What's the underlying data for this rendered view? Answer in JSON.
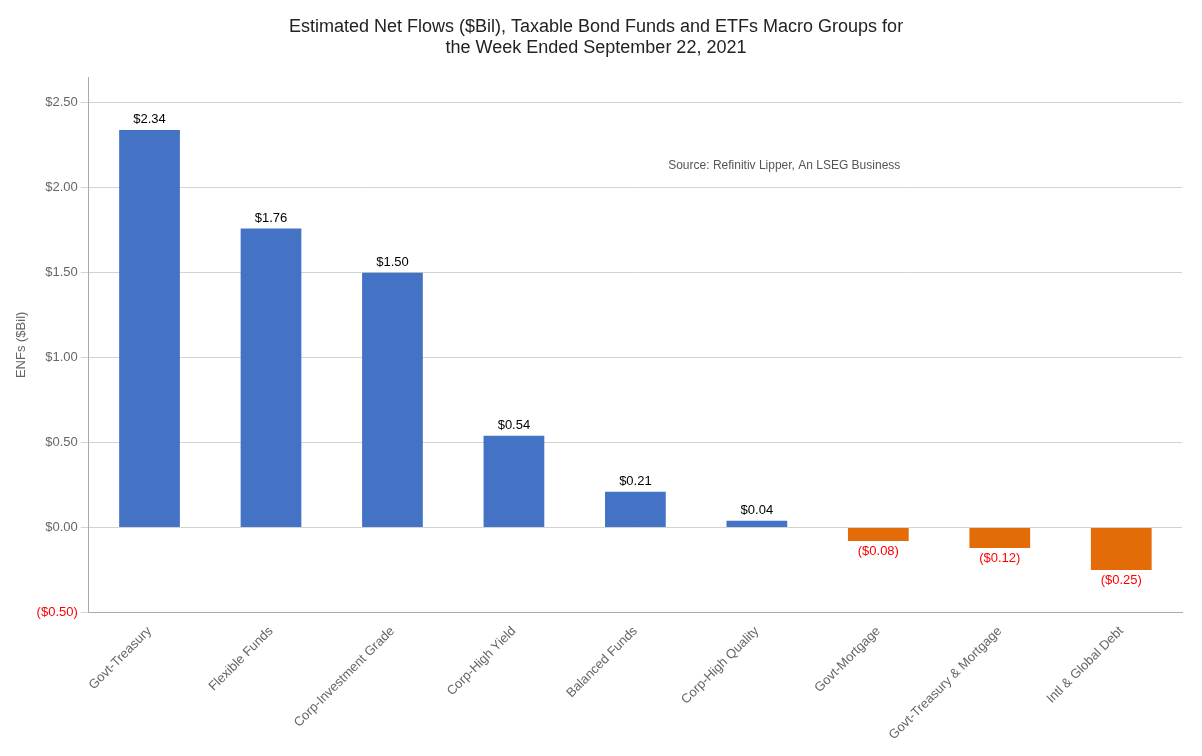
{
  "chart_data": {
    "type": "bar",
    "title": "Estimated Net Flows ($Bil), Taxable Bond Funds and ETFs Macro Groups for\nthe Week Ended September 22, 2021",
    "ylabel": "ENFs ($Bil)",
    "annotations": [
      "Source: Refinitiv Lipper, An LSEG Business"
    ],
    "categories": [
      "Govt-Treasury",
      "Flexible Funds",
      "Corp-Investment Grade",
      "Corp-High Yield",
      "Balanced Funds",
      "Corp-High Quality",
      "Govt-Mortgage",
      "Govt-Treasury & Mortgage",
      "Intl & Global Debt"
    ],
    "values": [
      2.34,
      1.76,
      1.5,
      0.54,
      0.21,
      0.04,
      -0.08,
      -0.12,
      -0.25
    ],
    "value_labels": [
      "$2.34",
      "$1.76",
      "$1.50",
      "$0.54",
      "$0.21",
      "$0.04",
      "($0.08)",
      "($0.12)",
      "($0.25)"
    ],
    "data_labels": true,
    "colors": [
      "#4472C4",
      "#4472C4",
      "#4472C4",
      "#4472C4",
      "#4472C4",
      "#4472C4",
      "#E36C09",
      "#E36C09",
      "#E36C09"
    ],
    "ylim": [
      -0.5,
      2.65
    ],
    "yticks": [
      {
        "value": -0.5,
        "label": "($0.50)"
      },
      {
        "value": 0.0,
        "label": "$0.00"
      },
      {
        "value": 0.5,
        "label": "$0.50"
      },
      {
        "value": 1.0,
        "label": "$1.00"
      },
      {
        "value": 1.5,
        "label": "$1.50"
      },
      {
        "value": 2.0,
        "label": "$2.00"
      },
      {
        "value": 2.5,
        "label": "$2.50"
      }
    ],
    "grid": true
  }
}
